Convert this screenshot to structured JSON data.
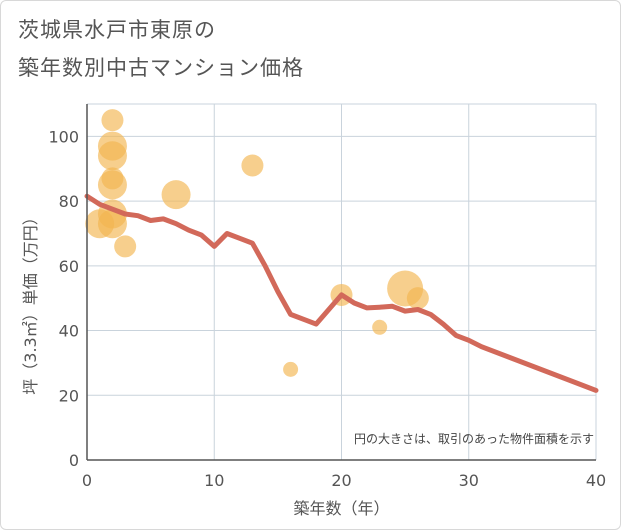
{
  "title_line1": "茨城県水戸市東原の",
  "title_line2": "築年数別中古マンション価格",
  "colors": {
    "bubble": "#f3b550",
    "line": "#d2695a",
    "grid": "#c9d3dc",
    "axis": "#555555",
    "background": "#ffffff"
  },
  "chart_data": {
    "type": "scatter",
    "title": "茨城県水戸市東原の築年数別中古マンション価格",
    "xlabel": "築年数（年）",
    "ylabel": "坪（3.3㎡）単価（万円）",
    "xlim": [
      0,
      40
    ],
    "ylim": [
      0,
      110
    ],
    "x_ticks": [
      0,
      10,
      20,
      30,
      40
    ],
    "y_ticks": [
      0,
      20,
      40,
      60,
      80,
      100
    ],
    "grid": true,
    "note": "円の大きさは、取引のあった物件面積を示す",
    "bubbles": [
      {
        "x": 1,
        "y": 73,
        "size": 3
      },
      {
        "x": 2,
        "y": 105,
        "size": 2
      },
      {
        "x": 2,
        "y": 97,
        "size": 3
      },
      {
        "x": 2,
        "y": 94,
        "size": 3
      },
      {
        "x": 2,
        "y": 87,
        "size": 2
      },
      {
        "x": 2,
        "y": 85,
        "size": 3
      },
      {
        "x": 2,
        "y": 76,
        "size": 3
      },
      {
        "x": 2,
        "y": 73,
        "size": 3
      },
      {
        "x": 3,
        "y": 66,
        "size": 2
      },
      {
        "x": 7,
        "y": 82,
        "size": 3
      },
      {
        "x": 13,
        "y": 91,
        "size": 2
      },
      {
        "x": 16,
        "y": 28,
        "size": 1
      },
      {
        "x": 20,
        "y": 51,
        "size": 2
      },
      {
        "x": 23,
        "y": 41,
        "size": 1
      },
      {
        "x": 25,
        "y": 53,
        "size": 4
      },
      {
        "x": 26,
        "y": 50,
        "size": 2
      }
    ],
    "trend_line": {
      "x": [
        0,
        1,
        2,
        3,
        4,
        5,
        6,
        7,
        8,
        9,
        10,
        11,
        12,
        13,
        14,
        15,
        16,
        17,
        18,
        19,
        20,
        21,
        22,
        23,
        24,
        25,
        26,
        27,
        28,
        29,
        30,
        31,
        40
      ],
      "y": [
        81.5,
        79,
        77.5,
        76,
        75.5,
        74,
        74.5,
        73,
        71,
        69.5,
        66,
        70,
        68.5,
        67,
        60,
        52,
        45,
        43.5,
        42,
        46.5,
        51,
        48.5,
        47,
        47.2,
        47.5,
        46,
        46.5,
        45,
        42,
        38.5,
        37,
        35,
        21.5
      ]
    }
  }
}
